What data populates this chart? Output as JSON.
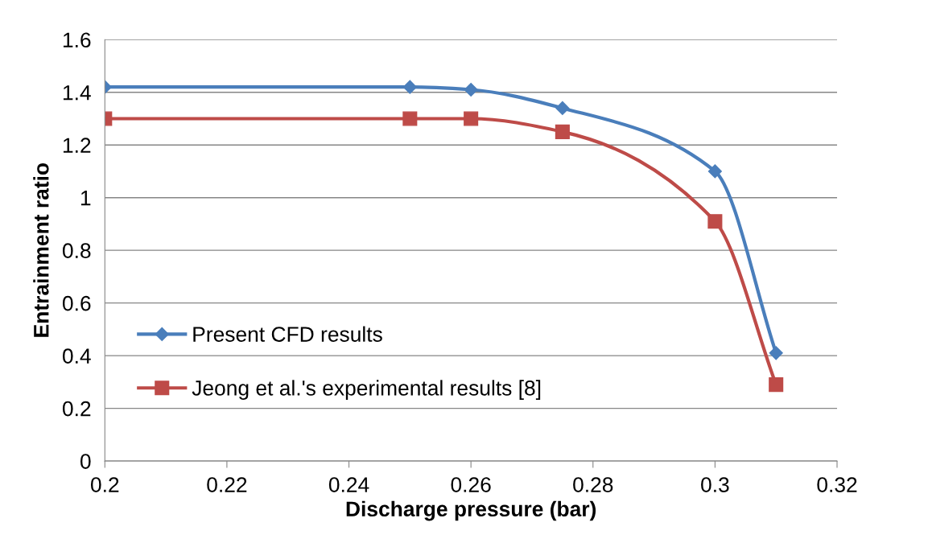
{
  "chart_data": {
    "type": "line",
    "xlabel": "Discharge pressure (bar)",
    "ylabel": "Entrainment ratio",
    "series": [
      {
        "name": "Present CFD results",
        "color": "#4a7ebb",
        "marker": "diamond",
        "x": [
          0.2,
          0.25,
          0.26,
          0.275,
          0.3,
          0.31
        ],
        "values": [
          1.42,
          1.42,
          1.41,
          1.34,
          1.1,
          0.41
        ]
      },
      {
        "name": "Jeong et al.'s experimental results [8]",
        "color": "#be4b48",
        "marker": "square",
        "x": [
          0.2,
          0.25,
          0.26,
          0.275,
          0.3,
          0.31
        ],
        "values": [
          1.3,
          1.3,
          1.3,
          1.25,
          0.91,
          0.29
        ]
      }
    ],
    "xlim": [
      0.2,
      0.32
    ],
    "xticks": [
      {
        "value": 0.2,
        "label": "0.2"
      },
      {
        "value": 0.22,
        "label": "0.22"
      },
      {
        "value": 0.24,
        "label": "0.24"
      },
      {
        "value": 0.26,
        "label": "0.26"
      },
      {
        "value": 0.28,
        "label": "0.28"
      },
      {
        "value": 0.3,
        "label": "0.3"
      },
      {
        "value": 0.32,
        "label": "0.32"
      }
    ],
    "ylim": [
      0,
      1.6
    ],
    "yticks": [
      0,
      {
        "value": 0.2,
        "label": "0.2"
      },
      {
        "value": 0.4,
        "label": "0.4"
      },
      {
        "value": 0.6,
        "label": "0.6"
      },
      {
        "value": 0.8,
        "label": "0.8"
      },
      1,
      {
        "value": 1.2,
        "label": "1.2"
      },
      {
        "value": 1.4,
        "label": "1.4"
      },
      {
        "value": 1.6,
        "label": "1.6"
      }
    ],
    "grid": "y",
    "legend": "bottom left",
    "line_style": "solid"
  }
}
